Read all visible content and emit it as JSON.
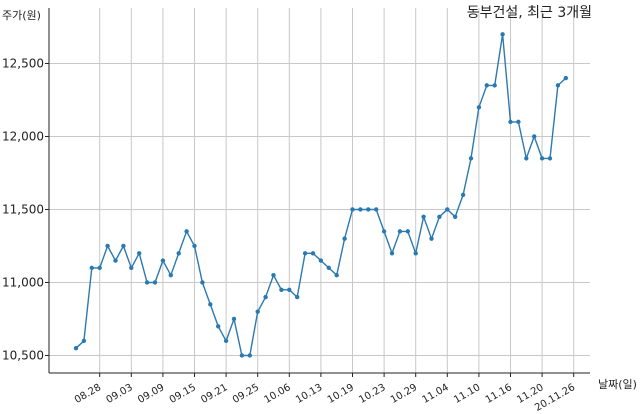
{
  "chart_data": {
    "type": "line",
    "title": "동부건설, 최근 3개월",
    "ylabel": "주가(원)",
    "xlabel": "날짜(일)",
    "ylim": [
      10380,
      12880
    ],
    "yticks": [
      10500,
      11000,
      11500,
      12000,
      12500
    ],
    "ytick_labels": [
      "10,500",
      "11,000",
      "11,500",
      "12,000",
      "12,500"
    ],
    "xtick_labels": [
      "08.28",
      "09.03",
      "09.09",
      "09.15",
      "09.21",
      "09.25",
      "10.06",
      "10.13",
      "10.19",
      "10.23",
      "10.29",
      "11.04",
      "11.10",
      "11.16",
      "11.20",
      "20.11.26"
    ],
    "xtick_index": [
      3,
      7,
      11,
      15,
      19,
      23,
      27,
      31,
      35,
      39,
      43,
      47,
      51,
      55,
      59,
      63
    ],
    "grid": true,
    "color": "#2a7ab0",
    "series": [
      {
        "values": [
          10550,
          10600,
          11100,
          11100,
          11250,
          11150,
          11250,
          11100,
          11200,
          11000,
          11000,
          11150,
          11050,
          11200,
          11350,
          11250,
          11000,
          10850,
          10700,
          10600,
          10750,
          10500,
          10500,
          10800,
          10900,
          11050,
          10950,
          10950,
          10900,
          11200,
          11200,
          11150,
          11100,
          11050,
          11300,
          11500,
          11500,
          11500,
          11500,
          11350,
          11200,
          11350,
          11350,
          11200,
          11450,
          11300,
          11450,
          11500,
          11450,
          11600,
          11850,
          12200,
          12350,
          12350,
          12700,
          12100,
          12100,
          11850,
          12000,
          11850,
          11850,
          12350,
          12400
        ]
      }
    ]
  }
}
